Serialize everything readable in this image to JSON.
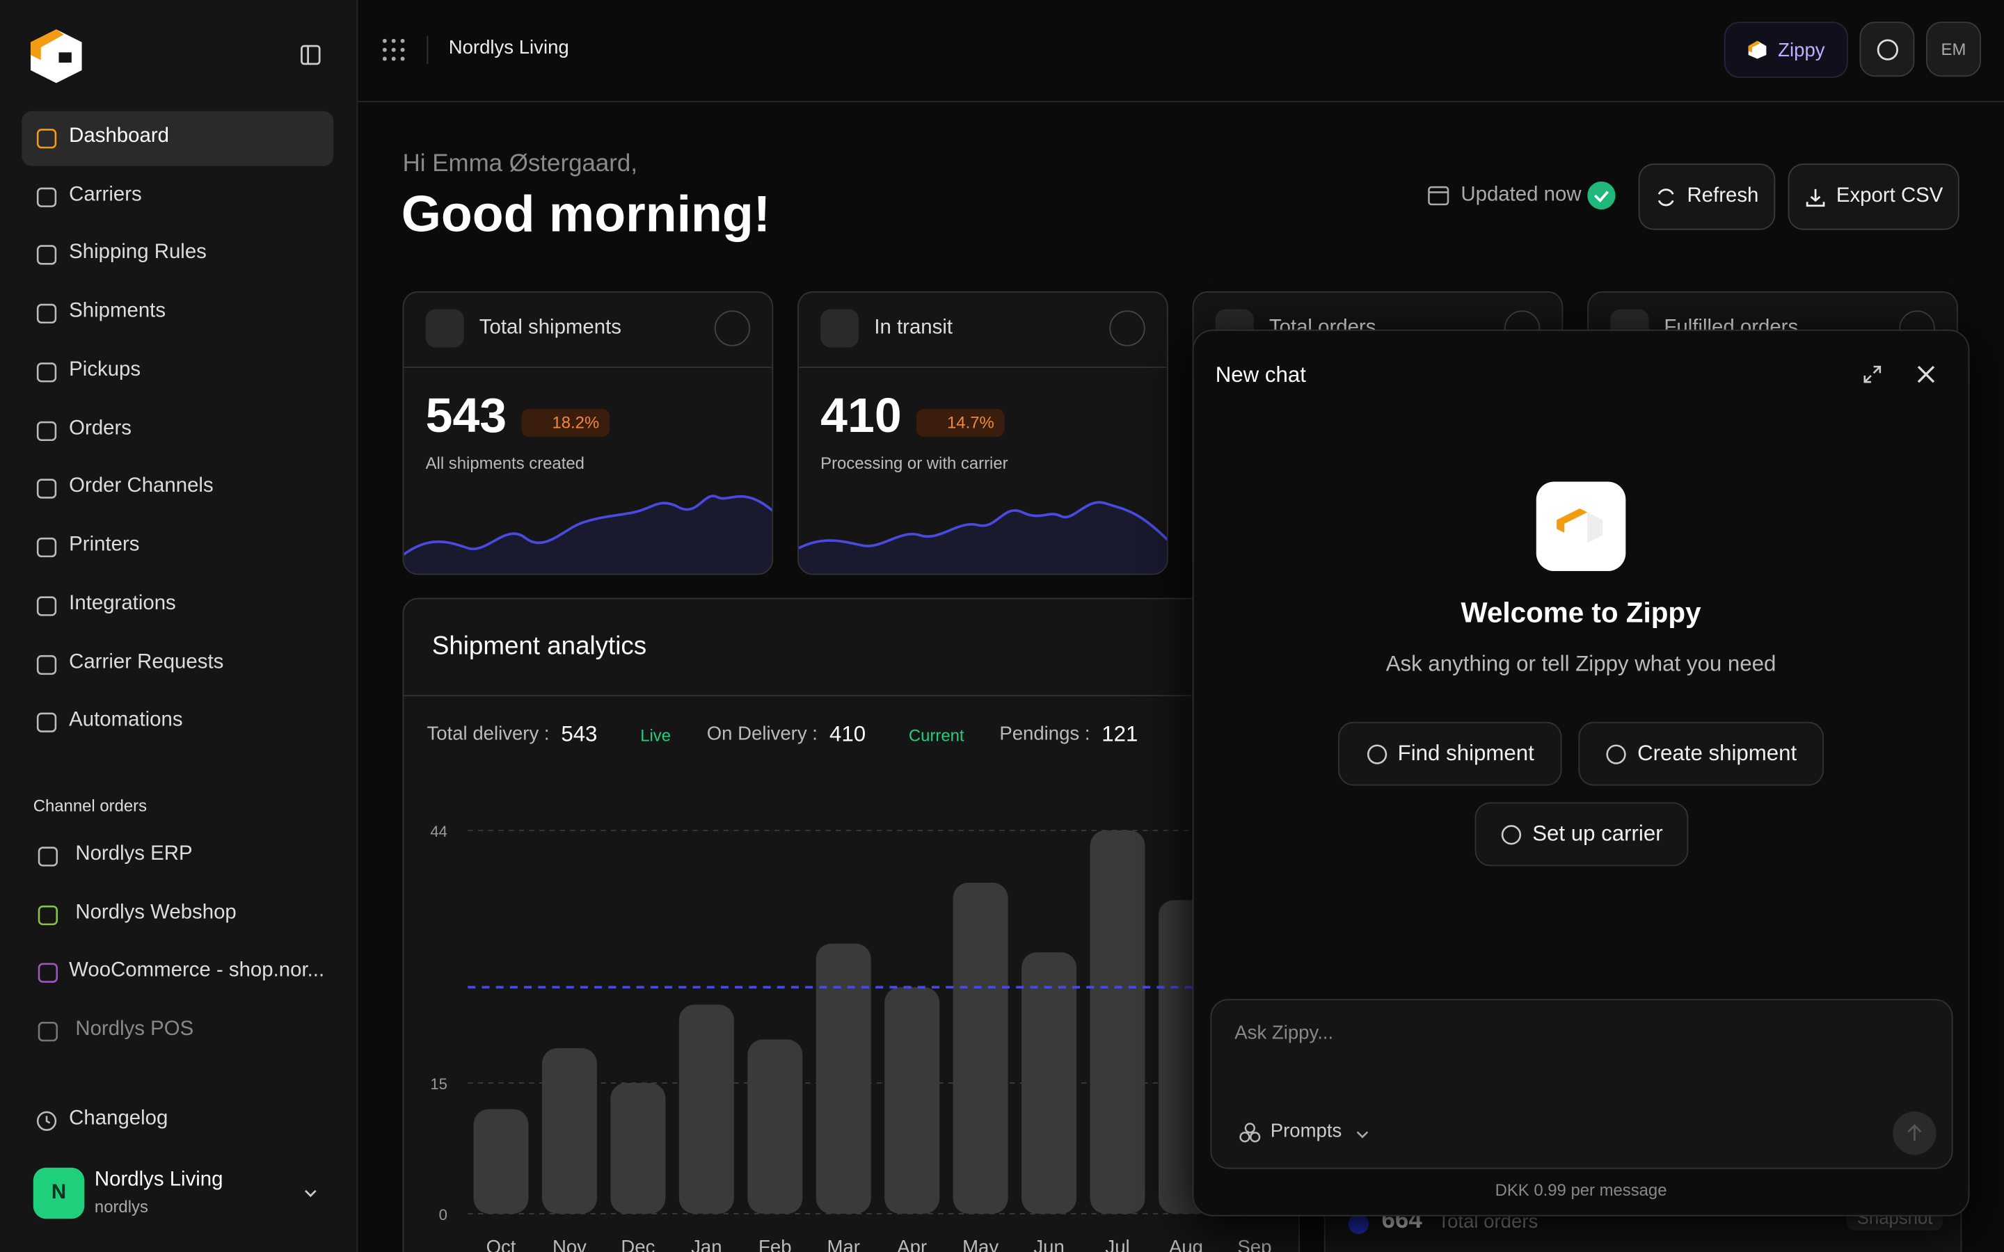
{
  "sidebar": {
    "nav": [
      "Dashboard",
      "Carriers",
      "Shipping Rules",
      "Shipments",
      "Pickups",
      "Orders",
      "Order Channels",
      "Printers",
      "Integrations",
      "Carrier Requests",
      "Automations"
    ],
    "section_title": "Channel orders",
    "channels": [
      "Nordlys ERP",
      "Nordlys Webshop",
      "WooCommerce - shop.nor...",
      "Nordlys POS"
    ],
    "changelog": "Changelog",
    "account": {
      "avatar": "N",
      "name": "Nordlys Living",
      "handle": "nordlys"
    }
  },
  "topbar": {
    "workspace": "Nordlys Living",
    "assistant": "Zippy",
    "avatar": "EM"
  },
  "greeting": {
    "hello": "Hi Emma Østergaard,",
    "title": "Good morning!"
  },
  "actions": {
    "status": "Updated now",
    "refresh": "Refresh",
    "export": "Export CSV"
  },
  "cards": [
    {
      "title": "Total shipments",
      "value": 543,
      "change": "18.2%",
      "caption": "All shipments created"
    },
    {
      "title": "In transit",
      "value": 410,
      "change": "14.7%",
      "caption": "Processing or with carrier"
    },
    {
      "title": "Total orders"
    },
    {
      "title": "Fulfilled orders"
    }
  ],
  "chart_data": {
    "type": "bar",
    "title": "Shipment analytics",
    "stats": [
      {
        "label": "Total delivery :",
        "value": 543,
        "tag": "Live"
      },
      {
        "label": "On Delivery :",
        "value": 410,
        "tag": "Current"
      },
      {
        "label": "Pendings :",
        "value": 121
      }
    ],
    "categories": [
      "Oct",
      "Nov",
      "Dec",
      "Jan",
      "Feb",
      "Mar",
      "Apr",
      "May",
      "Jun",
      "Jul",
      "Aug",
      "Sep"
    ],
    "values": [
      12,
      19,
      15,
      24,
      20,
      31,
      26,
      38,
      30,
      44,
      36,
      null
    ],
    "color": "#3a3a3a",
    "reference_line": 26,
    "ylim": [
      0,
      44
    ],
    "yticks": [
      0,
      15,
      44
    ],
    "grid": true
  },
  "chat": {
    "title": "New chat",
    "welcome": "Welcome to Zippy",
    "subtitle": "Ask anything or tell Zippy what you need",
    "suggestions": [
      "Find shipment",
      "Create shipment",
      "Set up carrier"
    ],
    "placeholder": "Ask Zippy...",
    "prompts": "Prompts",
    "pricing": "DKK 0.99 per message"
  },
  "footer_card": {
    "value": 664,
    "label": "Total orders",
    "badge": "Snapshot"
  }
}
